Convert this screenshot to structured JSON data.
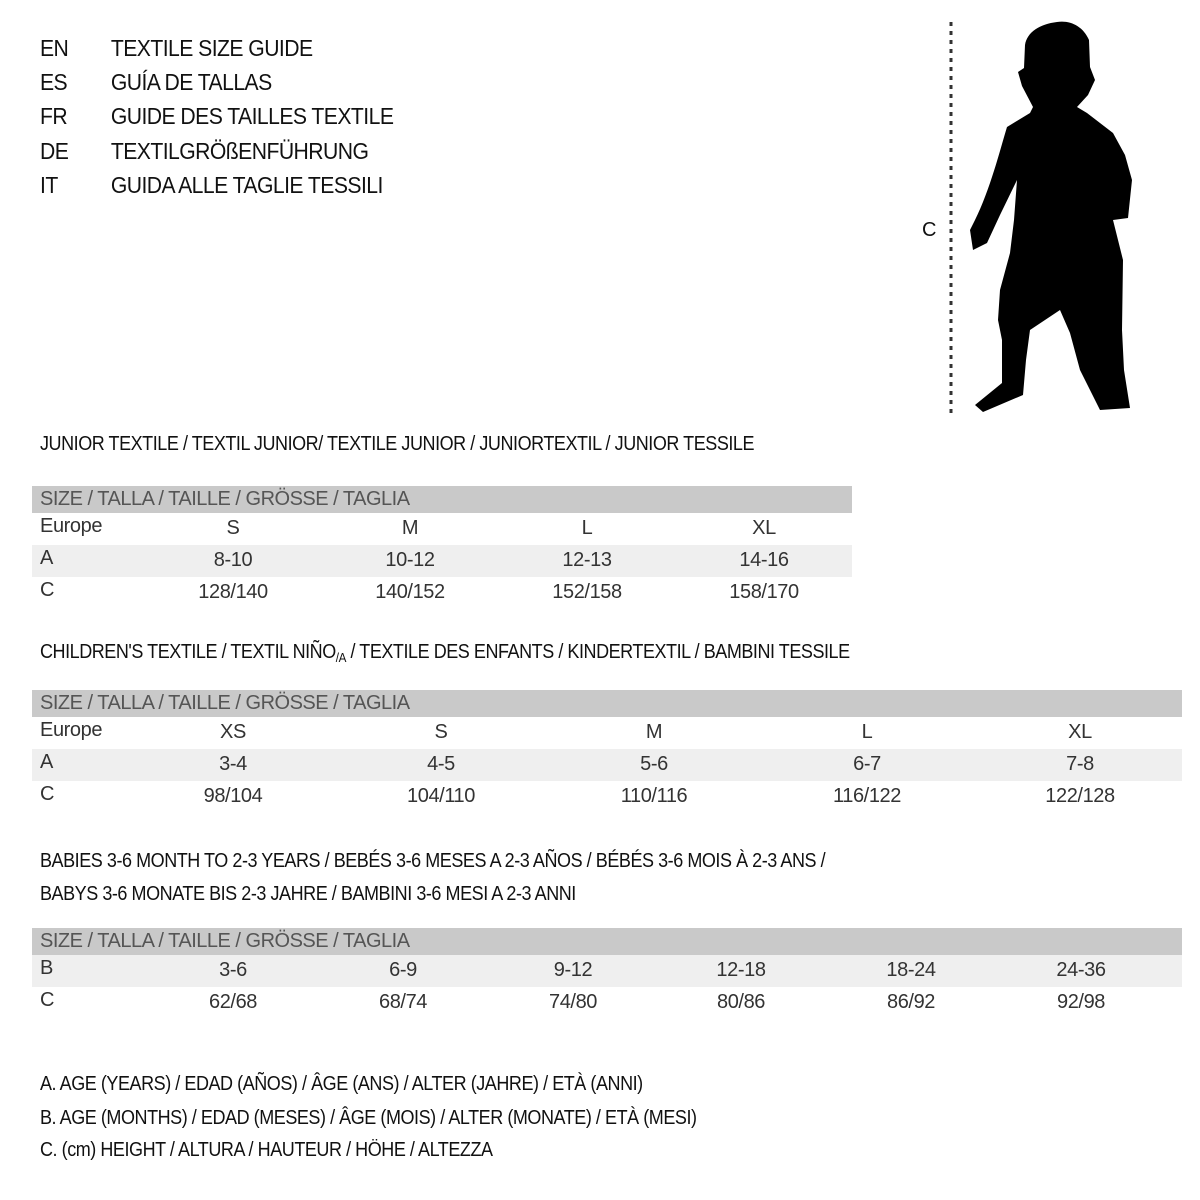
{
  "languages": [
    {
      "code": "EN",
      "text": "TEXTILE SIZE GUIDE"
    },
    {
      "code": "ES",
      "text": "GUÍA DE TALLAS"
    },
    {
      "code": "FR",
      "text": "GUIDE DES TAILLES TEXTILE"
    },
    {
      "code": "DE",
      "text": "TEXTILGRÖßENFÜHRUNG"
    },
    {
      "code": "IT",
      "text": "GUIDA ALLE TAGLIE TESSILI"
    }
  ],
  "figure": {
    "measure_label": "C",
    "icon": "child-silhouette"
  },
  "junior": {
    "title": "JUNIOR TEXTILE / TEXTIL JUNIOR/ TEXTILE JUNIOR / JUNIORTEXTIL / JUNIOR TESSILE",
    "header": "SIZE / TALLA / TAILLE / GRÖSSE / TAGLIA",
    "rows": [
      {
        "label": "Europe",
        "values": [
          "S",
          "M",
          "L",
          "XL"
        ]
      },
      {
        "label": "A",
        "values": [
          "8-10",
          "10-12",
          "12-13",
          "14-16"
        ]
      },
      {
        "label": "C",
        "values": [
          "128/140",
          "140/152",
          "152/158",
          "158/170"
        ]
      }
    ]
  },
  "children": {
    "title_pre": "CHILDREN'S TEXTILE / TEXTIL NIÑO",
    "title_sub": "/A",
    "title_post": " / TEXTILE DES ENFANTS / KINDERTEXTIL / BAMBINI TESSILE",
    "header": "SIZE / TALLA / TAILLE / GRÖSSE / TAGLIA",
    "rows": [
      {
        "label": "Europe",
        "values": [
          "XS",
          "S",
          "M",
          "L",
          "XL"
        ]
      },
      {
        "label": "A",
        "values": [
          "3-4",
          "4-5",
          "5-6",
          "6-7",
          "7-8"
        ]
      },
      {
        "label": "C",
        "values": [
          "98/104",
          "104/110",
          "110/116",
          "116/122",
          "122/128"
        ]
      }
    ]
  },
  "babies": {
    "title_line1": "BABIES 3-6 MONTH TO 2-3 YEARS / BEBÉS 3-6 MESES A 2-3 AÑOS / BÉBÉS 3-6 MOIS À 2-3 ANS /",
    "title_line2": "BABYS 3-6 MONATE BIS 2-3 JAHRE / BAMBINI 3-6 MESI A 2-3 ANNI",
    "header": "SIZE / TALLA / TAILLE / GRÖSSE / TAGLIA",
    "rows": [
      {
        "label": "B",
        "values": [
          "3-6",
          "6-9",
          "9-12",
          "12-18",
          "18-24",
          "24-36"
        ]
      },
      {
        "label": "C",
        "values": [
          "62/68",
          "68/74",
          "74/80",
          "80/86",
          "86/92",
          "92/98"
        ]
      }
    ]
  },
  "legend": [
    "A. AGE (YEARS) / EDAD (AÑOS) / ÂGE (ANS) / ALTER (JAHRE) / ETÀ (ANNI)",
    "B. AGE (MONTHS) / EDAD (MESES) / ÂGE (MOIS) / ALTER (MONATE) / ETÀ (MESI)",
    "C. (cm) HEIGHT / ALTURA / HAUTEUR / HÖHE / ALTEZZA"
  ],
  "colors": {
    "header_band": "#c9c9c9",
    "alt_row": "#efefef"
  }
}
